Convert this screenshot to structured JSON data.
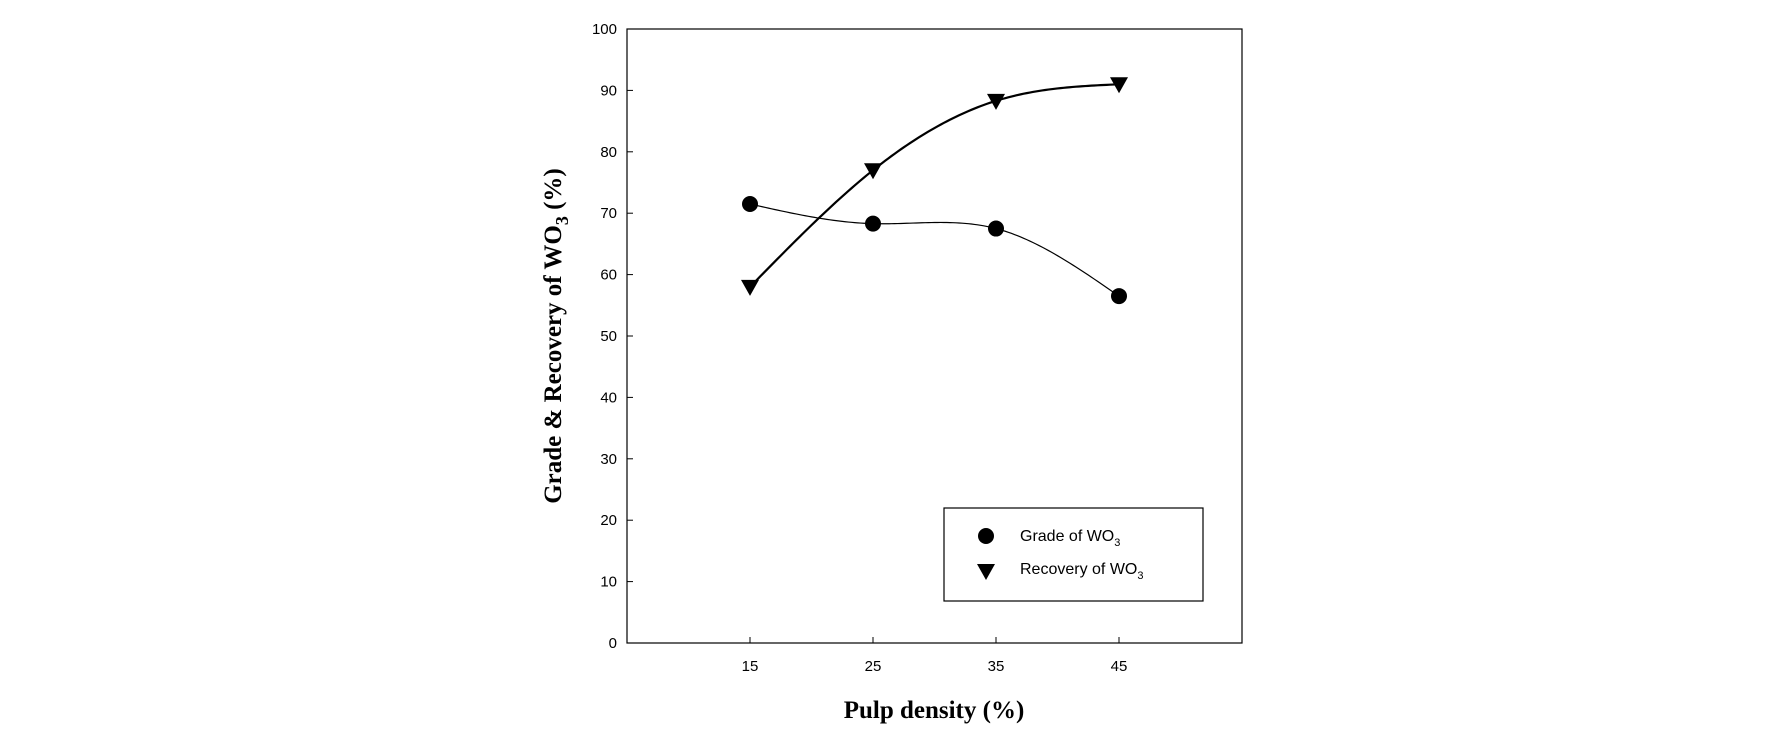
{
  "chart_data": {
    "type": "scatter",
    "title": "",
    "xlabel": "Pulp density (%)",
    "ylabel_main": "Grade & Recovery of WO",
    "ylabel_sub": "3",
    "ylabel_suffix": " (%)",
    "xlim": [
      5,
      55
    ],
    "ylim": [
      0,
      100
    ],
    "x_ticks": [
      15,
      25,
      35,
      45
    ],
    "y_ticks": [
      0,
      10,
      20,
      30,
      40,
      50,
      60,
      70,
      80,
      90,
      100
    ],
    "grid": false,
    "legend_position": "bottom-right",
    "series": [
      {
        "name_main": "Grade of WO",
        "name_sub": "3",
        "marker": "circle",
        "x": [
          15,
          25,
          35,
          45
        ],
        "y": [
          71.5,
          68.3,
          67.5,
          56.5
        ]
      },
      {
        "name_main": "Recovery of WO",
        "name_sub": "3",
        "marker": "triangle-down",
        "x": [
          15,
          25,
          35,
          45
        ],
        "y": [
          58,
          77,
          88.3,
          91
        ]
      }
    ]
  }
}
